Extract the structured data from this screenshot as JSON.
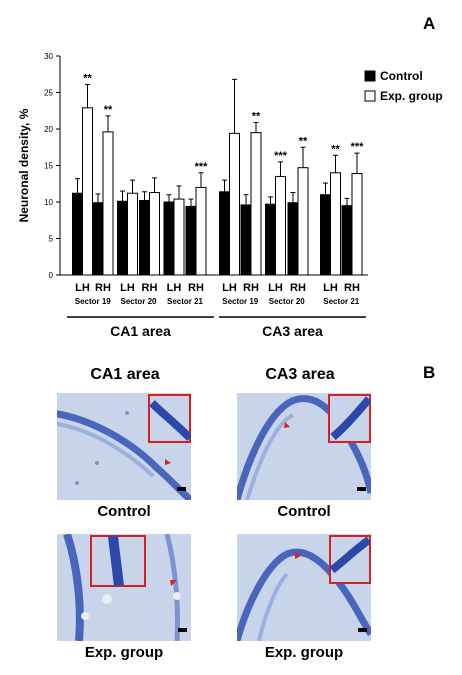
{
  "panel_a_label": "A",
  "panel_b_label": "B",
  "chart_data": {
    "type": "bar",
    "ylabel": "Neuronal density, %",
    "ylim": [
      0,
      30
    ],
    "yticks": [
      0,
      5,
      10,
      15,
      20,
      25,
      30
    ],
    "legend_position": "top-right",
    "series": [
      {
        "name": "Control",
        "color": "#000000"
      },
      {
        "name": "Exp. group",
        "color": "#ffffff"
      }
    ],
    "groups": [
      {
        "hemisphere": "LH",
        "sector": "Sector 19",
        "control": 11.2,
        "control_err": 2.0,
        "exp": 22.9,
        "exp_err": 3.2,
        "sig": "**"
      },
      {
        "hemisphere": "RH",
        "sector": "",
        "control": 9.9,
        "control_err": 1.2,
        "exp": 19.6,
        "exp_err": 2.2,
        "sig": "**"
      },
      {
        "hemisphere": "LH",
        "sector": "Sector 20",
        "control": 10.1,
        "control_err": 1.4,
        "exp": 11.2,
        "exp_err": 1.8,
        "sig": ""
      },
      {
        "hemisphere": "RH",
        "sector": "",
        "control": 10.2,
        "control_err": 1.2,
        "exp": 11.3,
        "exp_err": 2.0,
        "sig": ""
      },
      {
        "hemisphere": "LH",
        "sector": "Sector 21",
        "control": 10.0,
        "control_err": 1.0,
        "exp": 10.4,
        "exp_err": 1.8,
        "sig": ""
      },
      {
        "hemisphere": "RH",
        "sector": "",
        "control": 9.4,
        "control_err": 1.0,
        "exp": 12.0,
        "exp_err": 2.0,
        "sig": "***"
      },
      {
        "hemisphere": "LH",
        "sector": "Sector 19",
        "control": 11.4,
        "control_err": 1.6,
        "exp": 19.4,
        "exp_err": 7.4,
        "sig": ""
      },
      {
        "hemisphere": "RH",
        "sector": "",
        "control": 9.6,
        "control_err": 1.4,
        "exp": 19.5,
        "exp_err": 1.4,
        "sig": "**"
      },
      {
        "hemisphere": "LH",
        "sector": "Sector 20",
        "control": 9.7,
        "control_err": 1.0,
        "exp": 13.5,
        "exp_err": 2.0,
        "sig": "***"
      },
      {
        "hemisphere": "RH",
        "sector": "",
        "control": 9.9,
        "control_err": 1.4,
        "exp": 14.7,
        "exp_err": 2.8,
        "sig": "**"
      },
      {
        "hemisphere": "LH",
        "sector": "Sector 21",
        "control": 11.0,
        "control_err": 1.6,
        "exp": 14.0,
        "exp_err": 2.4,
        "sig": "**"
      },
      {
        "hemisphere": "RH",
        "sector": "",
        "control": 9.5,
        "control_err": 1.0,
        "exp": 13.9,
        "exp_err": 2.8,
        "sig": "***"
      }
    ],
    "areas": [
      {
        "label": "CA1 area",
        "from": 0,
        "to": 5
      },
      {
        "label": "CA3 area",
        "from": 6,
        "to": 11
      }
    ]
  },
  "panel_b": {
    "columns": [
      "CA1 area",
      "CA3 area"
    ],
    "captions": {
      "ca1_control": "Control",
      "ca3_control": "Control",
      "ca1_exp": "Exp. group",
      "ca3_exp": "Exp. group"
    },
    "stain_color": "#2e4fb0",
    "inset_frame_color": "#d42020",
    "arrow_color": "#e02020"
  }
}
